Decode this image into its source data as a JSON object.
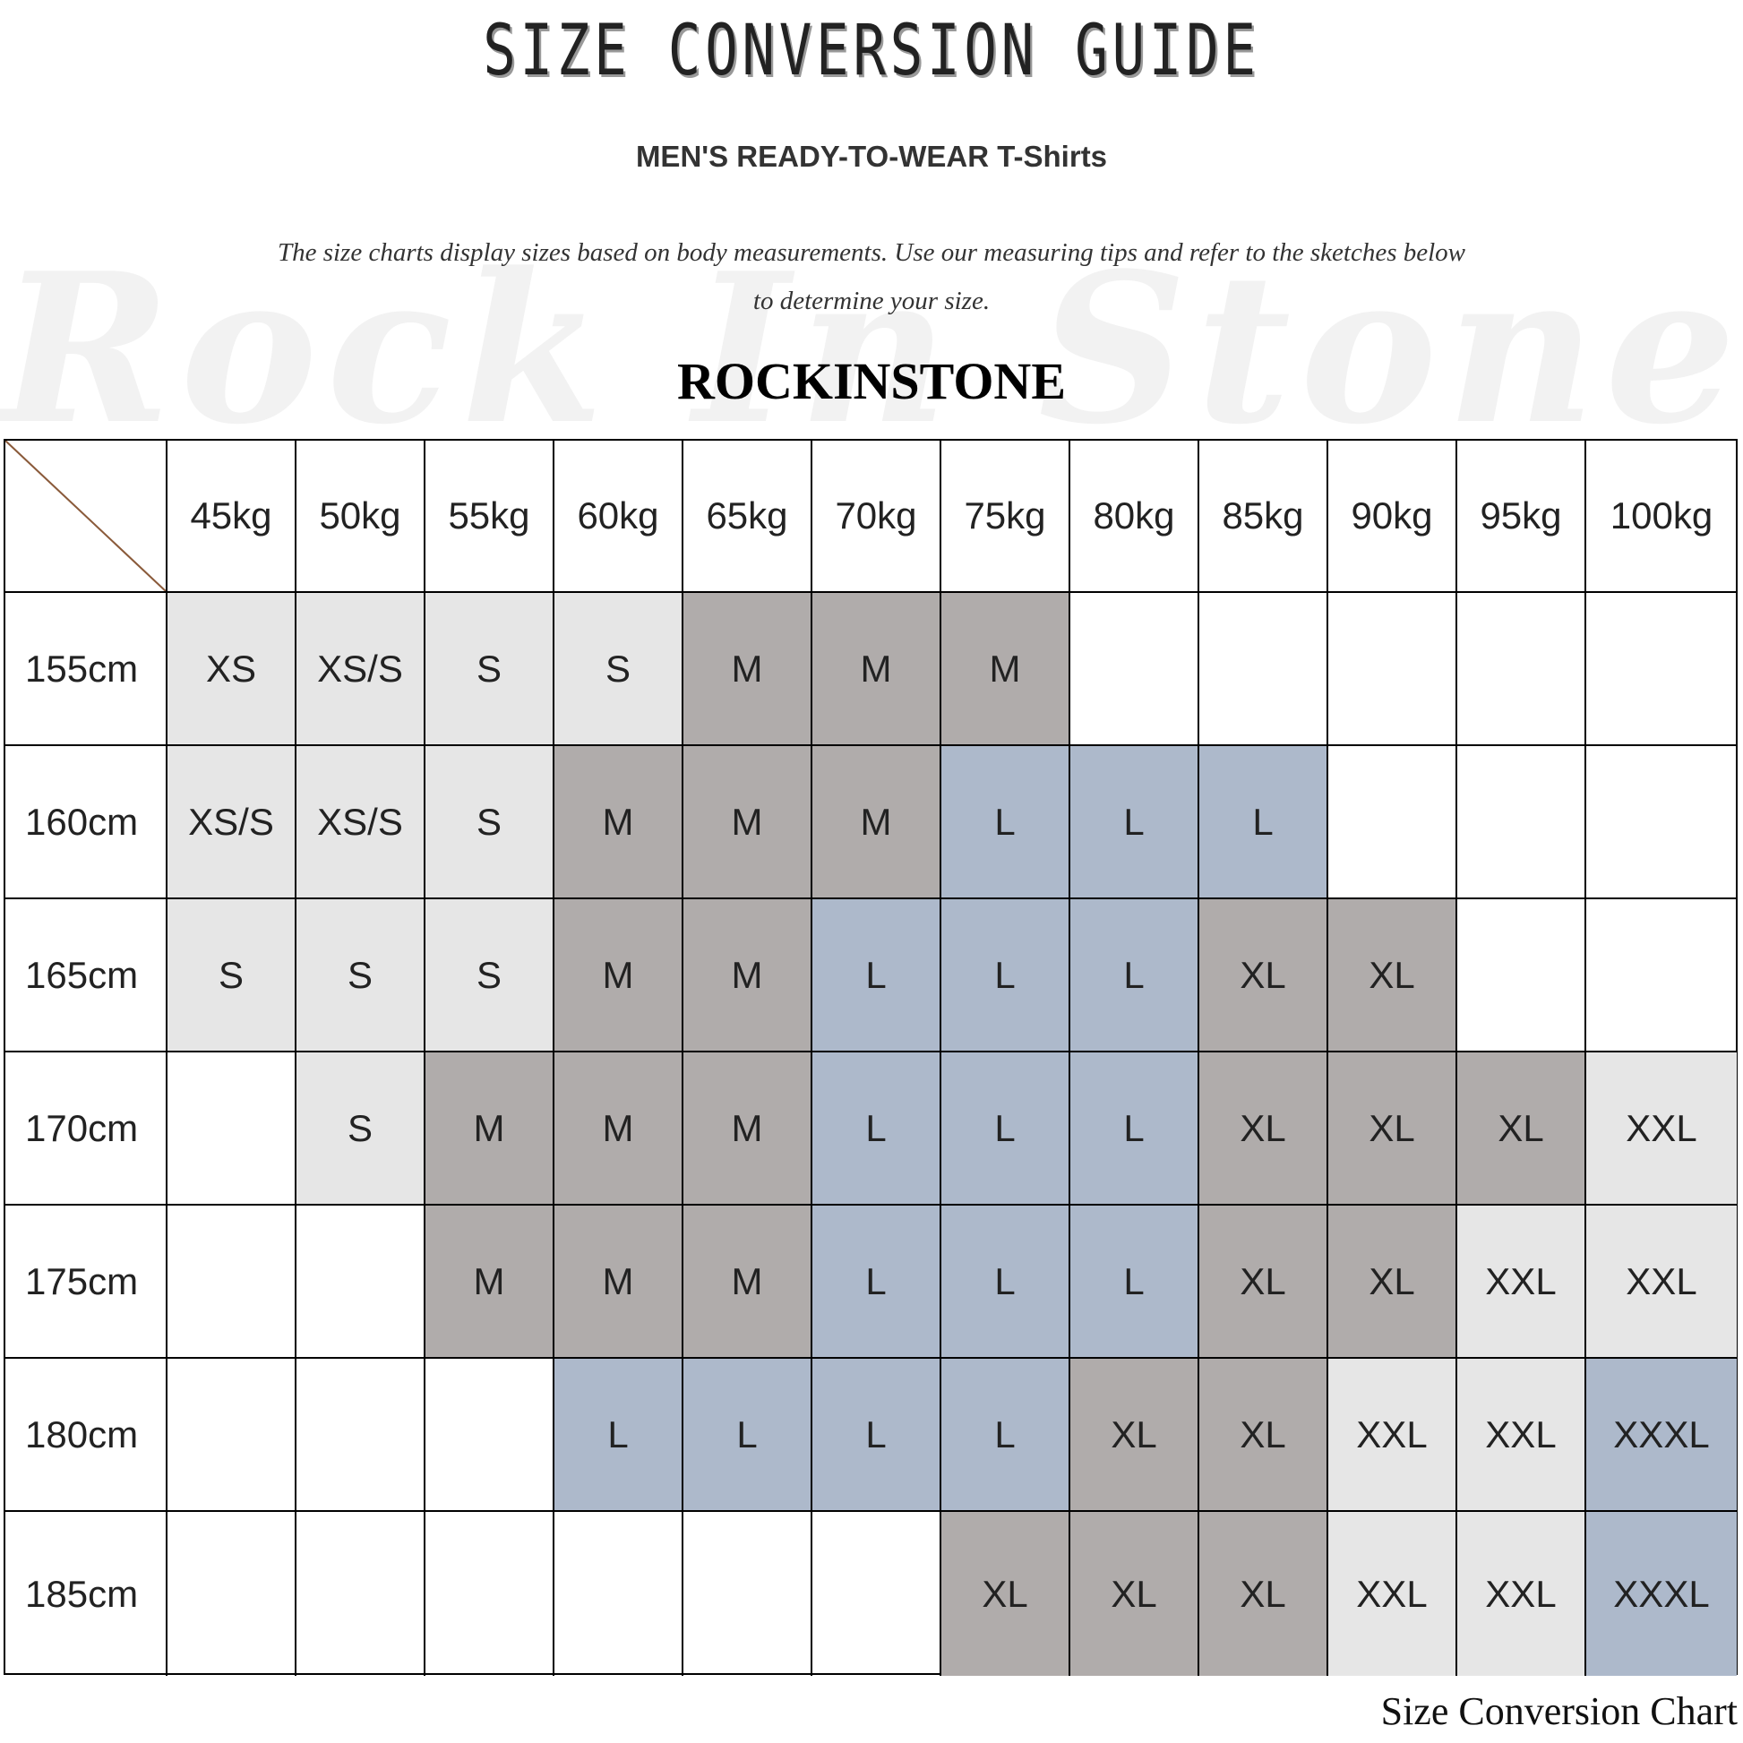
{
  "title": "SIZE CONVERSION GUIDE",
  "subtitle": "MEN'S READY-TO-WEAR T-Shirts",
  "description": "The size charts display sizes based on body measurements. Use our measuring tips and refer to the sketches below to determine your size.",
  "watermark": "Rock In Stone",
  "brand": "ROCKINSTONE",
  "footer": "Size Conversion Chart",
  "colors": {
    "S": "#e6e6e6",
    "XS": "#e6e6e6",
    "XS/S": "#e6e6e6",
    "M": "#b0acab",
    "L": "#adb9cb",
    "XL": "#b0acab",
    "XXL": "#e6e6e6",
    "XXXL": "#adb9cb"
  },
  "table": {
    "columns": [
      "45kg",
      "50kg",
      "55kg",
      "60kg",
      "65kg",
      "70kg",
      "75kg",
      "80kg",
      "85kg",
      "90kg",
      "95kg",
      "100kg"
    ],
    "rows": [
      {
        "height": "155cm",
        "sizes": [
          "XS",
          "XS/S",
          "S",
          "S",
          "M",
          "M",
          "M",
          "",
          "",
          "",
          "",
          ""
        ]
      },
      {
        "height": "160cm",
        "sizes": [
          "XS/S",
          "XS/S",
          "S",
          "M",
          "M",
          "M",
          "L",
          "L",
          "L",
          "",
          "",
          ""
        ]
      },
      {
        "height": "165cm",
        "sizes": [
          "S",
          "S",
          "S",
          "M",
          "M",
          "L",
          "L",
          "L",
          "XL",
          "XL",
          "",
          ""
        ]
      },
      {
        "height": "170cm",
        "sizes": [
          "",
          "S",
          "M",
          "M",
          "M",
          "L",
          "L",
          "L",
          "XL",
          "XL",
          "XL",
          "XXL"
        ]
      },
      {
        "height": "175cm",
        "sizes": [
          "",
          "",
          "M",
          "M",
          "M",
          "L",
          "L",
          "L",
          "XL",
          "XL",
          "XXL",
          "XXL"
        ]
      },
      {
        "height": "180cm",
        "sizes": [
          "",
          "",
          "",
          "L",
          "L",
          "L",
          "L",
          "XL",
          "XL",
          "XXL",
          "XXL",
          "XXXL"
        ]
      },
      {
        "height": "185cm",
        "sizes": [
          "",
          "",
          "",
          "",
          "",
          "",
          "XL",
          "XL",
          "XL",
          "XXL",
          "XXL",
          "XXXL"
        ]
      }
    ]
  }
}
